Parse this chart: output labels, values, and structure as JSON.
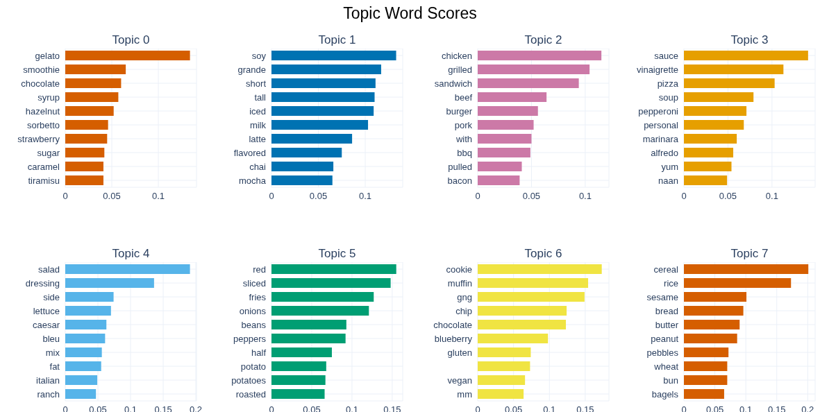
{
  "chart_data": [
    {
      "type": "other",
      "title": "Topic Word Scores"
    },
    {
      "type": "bar",
      "orientation": "horizontal",
      "title": "Topic 0",
      "categories": [
        "gelato",
        "smoothie",
        "chocolate",
        "syrup",
        "hazelnut",
        "sorbetto",
        "strawberry",
        "sugar",
        "caramel",
        "tiramisu"
      ],
      "values": [
        0.134,
        0.065,
        0.06,
        0.057,
        0.052,
        0.046,
        0.045,
        0.042,
        0.041,
        0.041
      ],
      "color": "#d55e00",
      "xlim": [
        0,
        0.141
      ],
      "xticks": [
        0,
        0.05,
        0.1
      ],
      "grid": true
    },
    {
      "type": "bar",
      "orientation": "horizontal",
      "title": "Topic 1",
      "categories": [
        "soy",
        "grande",
        "short",
        "tall",
        "iced",
        "milk",
        "latte",
        "flavored",
        "chai",
        "mocha"
      ],
      "values": [
        0.133,
        0.117,
        0.111,
        0.11,
        0.109,
        0.103,
        0.086,
        0.075,
        0.066,
        0.065
      ],
      "color": "#0072b2",
      "xlim": [
        0,
        0.14
      ],
      "xticks": [
        0,
        0.05,
        0.1
      ],
      "grid": true
    },
    {
      "type": "bar",
      "orientation": "horizontal",
      "title": "Topic 2",
      "categories": [
        "chicken",
        "grilled",
        "sandwich",
        "beef",
        "burger",
        "pork",
        "with",
        "bbq",
        "pulled",
        "bacon"
      ],
      "values": [
        0.115,
        0.104,
        0.094,
        0.064,
        0.056,
        0.052,
        0.05,
        0.049,
        0.041,
        0.039
      ],
      "color": "#cc79a7",
      "xlim": [
        0,
        0.122
      ],
      "xticks": [
        0,
        0.05,
        0.1
      ],
      "grid": true
    },
    {
      "type": "bar",
      "orientation": "horizontal",
      "title": "Topic 3",
      "categories": [
        "sauce",
        "vinaigrette",
        "pizza",
        "soup",
        "pepperoni",
        "personal",
        "marinara",
        "alfredo",
        "yum",
        "naan"
      ],
      "values": [
        0.141,
        0.113,
        0.103,
        0.079,
        0.071,
        0.068,
        0.06,
        0.056,
        0.054,
        0.049
      ],
      "color": "#e69f00",
      "xlim": [
        0,
        0.149
      ],
      "xticks": [
        0,
        0.05,
        0.1
      ],
      "grid": true
    },
    {
      "type": "bar",
      "orientation": "horizontal",
      "title": "Topic 4",
      "categories": [
        "salad",
        "dressing",
        "side",
        "lettuce",
        "caesar",
        "bleu",
        "mix",
        "fat",
        "italian",
        "ranch"
      ],
      "values": [
        0.191,
        0.136,
        0.074,
        0.07,
        0.063,
        0.061,
        0.056,
        0.055,
        0.049,
        0.047
      ],
      "color": "#56b4e9",
      "xlim": [
        0,
        0.201
      ],
      "xticks": [
        0,
        0.05,
        0.1,
        0.15,
        0.2
      ],
      "grid": true
    },
    {
      "type": "bar",
      "orientation": "horizontal",
      "title": "Topic 5",
      "categories": [
        "red",
        "sliced",
        "fries",
        "onions",
        "beans",
        "peppers",
        "half",
        "potato",
        "potatoes",
        "roasted"
      ],
      "values": [
        0.155,
        0.148,
        0.127,
        0.121,
        0.093,
        0.092,
        0.075,
        0.068,
        0.067,
        0.066
      ],
      "color": "#009e73",
      "xlim": [
        0,
        0.163
      ],
      "xticks": [
        0,
        0.05,
        0.1,
        0.15
      ],
      "grid": true
    },
    {
      "type": "bar",
      "orientation": "horizontal",
      "title": "Topic 6",
      "categories": [
        "cookie",
        "muffin",
        "gng",
        "chip",
        "chocolate",
        "blueberry",
        "gluten",
        null,
        "vegan",
        "mm"
      ],
      "values": [
        0.173,
        0.154,
        0.149,
        0.124,
        0.123,
        0.098,
        0.074,
        0.073,
        0.066,
        0.064
      ],
      "color": "#f0e442",
      "xlim": [
        0,
        0.183
      ],
      "xticks": [
        0,
        0.05,
        0.1,
        0.15
      ],
      "grid": true
    },
    {
      "type": "bar",
      "orientation": "horizontal",
      "title": "Topic 7",
      "categories": [
        "cereal",
        "rice",
        "sesame",
        "bread",
        "butter",
        "peanut",
        "pebbles",
        "wheat",
        "bun",
        "bagels"
      ],
      "values": [
        0.201,
        0.173,
        0.101,
        0.096,
        0.09,
        0.086,
        0.072,
        0.07,
        0.07,
        0.065
      ],
      "color": "#d55e00",
      "xlim": [
        0,
        0.212
      ],
      "xticks": [
        0,
        0.05,
        0.1,
        0.15,
        0.2
      ],
      "grid": true
    }
  ]
}
